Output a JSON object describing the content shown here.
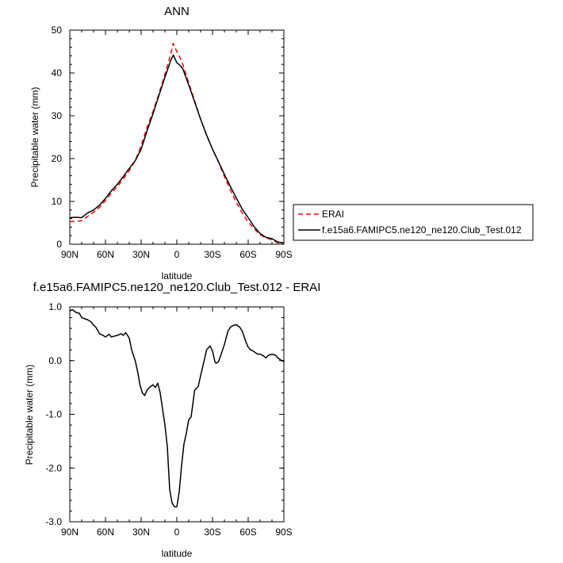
{
  "chart_data": [
    {
      "type": "line",
      "title": "ANN",
      "xlabel": "latitude",
      "ylabel": "Precipitable water (mm)",
      "xlim": [
        90,
        -90
      ],
      "ylim": [
        0,
        50
      ],
      "x_ticks": [
        90,
        60,
        30,
        0,
        -30,
        -60,
        -90
      ],
      "x_tick_labels": [
        "90N",
        "60N",
        "30N",
        "0",
        "30S",
        "60S",
        "90S"
      ],
      "y_ticks": [
        0,
        10,
        20,
        30,
        40,
        50
      ],
      "y_tick_labels": [
        "0",
        "10",
        "20",
        "30",
        "40",
        "50"
      ],
      "grid": false,
      "legend_position": "right",
      "x": [
        90,
        85,
        80,
        75,
        70,
        65,
        60,
        55,
        50,
        45,
        40,
        35,
        30,
        25,
        20,
        15,
        10,
        5,
        3,
        0,
        -3,
        -5,
        -10,
        -15,
        -20,
        -25,
        -30,
        -35,
        -40,
        -45,
        -50,
        -55,
        -60,
        -65,
        -70,
        -75,
        -80,
        -85,
        -90
      ],
      "series": [
        {
          "name": "ERAI",
          "color": "#ff0000",
          "style": "dashed",
          "values": [
            5.3,
            5.3,
            5.5,
            6.5,
            7.5,
            8.6,
            10.2,
            12.0,
            13.5,
            15.3,
            17.2,
            19.5,
            23.0,
            27.3,
            31.0,
            35.2,
            39.7,
            44.5,
            46.9,
            45.0,
            43.4,
            42.0,
            37.7,
            33.5,
            29.2,
            25.5,
            22.2,
            19.2,
            15.8,
            12.7,
            9.8,
            7.3,
            5.2,
            3.6,
            2.2,
            1.5,
            1.0,
            0.3,
            0.2
          ]
        },
        {
          "name": "f.e15a6.FAMIPC5.ne120_ne120.Club_Test.012",
          "color": "#000000",
          "style": "solid",
          "values": [
            6.2,
            6.3,
            6.2,
            7.3,
            8.0,
            9.1,
            10.7,
            12.5,
            14.0,
            15.8,
            17.7,
            19.5,
            22.2,
            26.5,
            30.5,
            34.8,
            39.0,
            43.0,
            44.2,
            42.4,
            41.7,
            41.0,
            37.2,
            33.2,
            29.2,
            25.5,
            22.2,
            19.3,
            16.3,
            13.5,
            10.8,
            8.2,
            6.2,
            4.1,
            2.5,
            1.6,
            1.3,
            0.5,
            0.3
          ]
        }
      ]
    },
    {
      "type": "line",
      "title": "f.e15a6.FAMIPC5.ne120_ne120.Club_Test.012 - ERAI",
      "xlabel": "latitude",
      "ylabel": "Precipitable water (mm)",
      "xlim": [
        90,
        -90
      ],
      "ylim": [
        -3.0,
        1.0
      ],
      "x_ticks": [
        90,
        60,
        30,
        0,
        -30,
        -60,
        -90
      ],
      "x_tick_labels": [
        "90N",
        "60N",
        "30N",
        "0",
        "30S",
        "60S",
        "90S"
      ],
      "y_ticks": [
        -3.0,
        -2.0,
        -1.0,
        0.0,
        1.0
      ],
      "y_tick_labels": [
        "-3.0",
        "-2.0",
        "-1.0",
        "0.0",
        "1.0"
      ],
      "grid": false,
      "x": [
        90,
        88,
        85,
        82,
        80,
        75,
        72,
        70,
        68,
        65,
        62,
        60,
        57,
        55,
        50,
        47,
        45,
        43,
        40,
        38,
        35,
        33,
        31,
        29,
        27,
        25,
        23,
        20,
        18,
        16,
        14,
        12,
        10,
        8,
        6,
        4,
        2,
        0,
        -2,
        -4,
        -6,
        -8,
        -10,
        -12,
        -15,
        -18,
        -20,
        -23,
        -25,
        -27,
        -28,
        -30,
        -32,
        -33,
        -35,
        -37,
        -40,
        -43,
        -45,
        -47,
        -50,
        -53,
        -55,
        -58,
        -60,
        -62,
        -64,
        -66,
        -68,
        -70,
        -72,
        -75,
        -77,
        -80,
        -83,
        -85,
        -88,
        -90
      ],
      "series": [
        {
          "name": "",
          "color": "#000000",
          "style": "solid",
          "values": [
            0.92,
            0.95,
            0.9,
            0.88,
            0.8,
            0.76,
            0.72,
            0.66,
            0.62,
            0.5,
            0.47,
            0.44,
            0.49,
            0.44,
            0.47,
            0.5,
            0.47,
            0.52,
            0.42,
            0.2,
            0.0,
            -0.2,
            -0.45,
            -0.6,
            -0.65,
            -0.55,
            -0.5,
            -0.45,
            -0.5,
            -0.42,
            -0.6,
            -0.9,
            -1.2,
            -1.6,
            -2.4,
            -2.65,
            -2.72,
            -2.72,
            -2.45,
            -1.95,
            -1.55,
            -1.35,
            -1.1,
            -1.05,
            -0.55,
            -0.48,
            -0.28,
            0.0,
            0.2,
            0.25,
            0.27,
            0.18,
            -0.02,
            -0.05,
            -0.02,
            0.1,
            0.3,
            0.55,
            0.62,
            0.65,
            0.67,
            0.62,
            0.55,
            0.35,
            0.25,
            0.2,
            0.18,
            0.15,
            0.12,
            0.12,
            0.1,
            0.05,
            0.1,
            0.12,
            0.1,
            0.05,
            0.0,
            -0.02
          ]
        }
      ]
    }
  ]
}
